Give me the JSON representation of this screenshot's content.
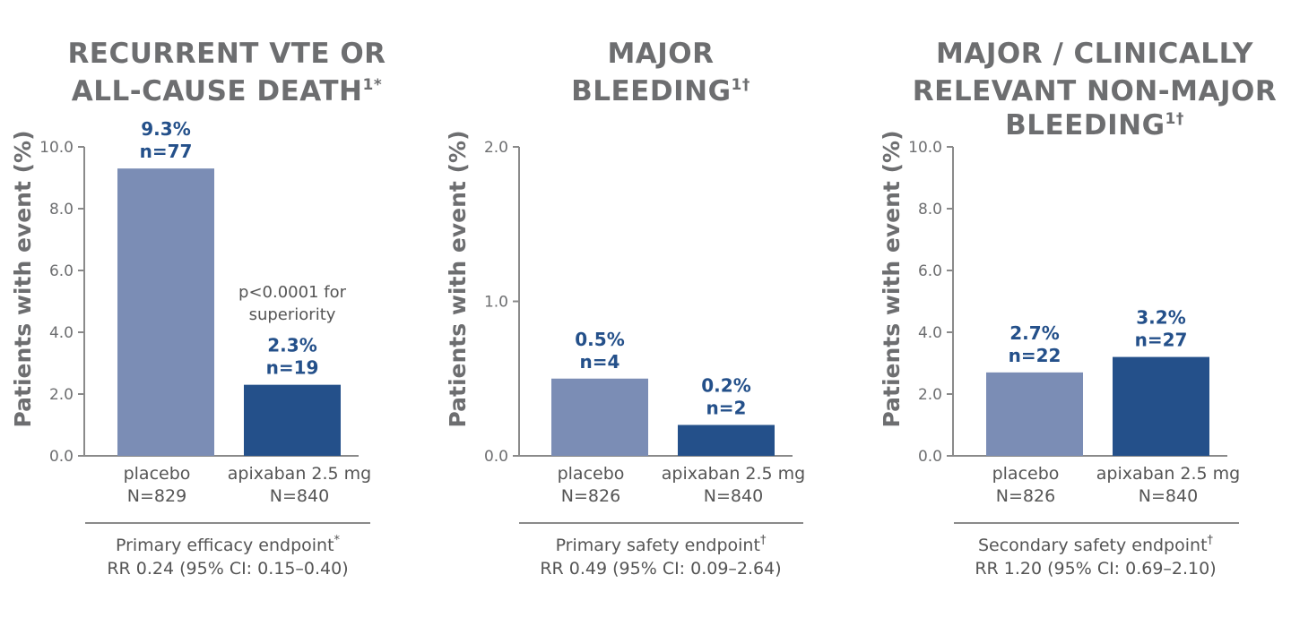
{
  "colors": {
    "placebo": "#7b8db5",
    "apixaban": "#24508a",
    "label": "#24508a",
    "axis": "#8a8a8a",
    "title": "#6d6e70"
  },
  "chart_data": [
    {
      "type": "bar",
      "title_lines": [
        "RECURRENT VTE OR",
        "ALL-CAUSE DEATH"
      ],
      "title_sup": "1*",
      "ylabel": "Patients with event (%)",
      "ylim": [
        0,
        10
      ],
      "yticks": [
        "0.0",
        "2.0",
        "4.0",
        "6.0",
        "8.0",
        "10.0"
      ],
      "categories": [
        "placebo",
        "apixaban 2.5 mg"
      ],
      "category_n": [
        "N=829",
        "N=840"
      ],
      "values": [
        9.3,
        2.3
      ],
      "value_labels": [
        "9.3%",
        "2.3%"
      ],
      "n_labels": [
        "n=77",
        "n=19"
      ],
      "annotation": [
        "p<0.0001 for",
        "superiority"
      ],
      "footer_line1": "Primary efficacy endpoint",
      "footer_sup": "*",
      "footer_line2": "RR 0.24 (95% CI: 0.15–0.40)"
    },
    {
      "type": "bar",
      "title_lines": [
        "MAJOR",
        "BLEEDING"
      ],
      "title_sup": "1†",
      "ylabel": "Patients with event (%)",
      "ylim": [
        0,
        2
      ],
      "yticks": [
        "0.0",
        "1.0",
        "2.0"
      ],
      "categories": [
        "placebo",
        "apixaban 2.5 mg"
      ],
      "category_n": [
        "N=826",
        "N=840"
      ],
      "values": [
        0.5,
        0.2
      ],
      "value_labels": [
        "0.5%",
        "0.2%"
      ],
      "n_labels": [
        "n=4",
        "n=2"
      ],
      "footer_line1": "Primary safety endpoint",
      "footer_sup": "†",
      "footer_line2": "RR 0.49 (95% CI: 0.09–2.64)"
    },
    {
      "type": "bar",
      "title_lines": [
        "MAJOR / CLINICALLY",
        "RELEVANT NON-MAJOR",
        "BLEEDING"
      ],
      "title_sup": "1†",
      "ylabel": "Patients with event (%)",
      "ylim": [
        0,
        10
      ],
      "yticks": [
        "0.0",
        "2.0",
        "4.0",
        "6.0",
        "8.0",
        "10.0"
      ],
      "categories": [
        "placebo",
        "apixaban 2.5 mg"
      ],
      "category_n": [
        "N=826",
        "N=840"
      ],
      "values": [
        2.7,
        3.2
      ],
      "value_labels": [
        "2.7%",
        "3.2%"
      ],
      "n_labels": [
        "n=22",
        "n=27"
      ],
      "footer_line1": "Secondary safety endpoint",
      "footer_sup": "†",
      "footer_line2": "RR 1.20 (95% CI: 0.69–2.10)"
    }
  ]
}
